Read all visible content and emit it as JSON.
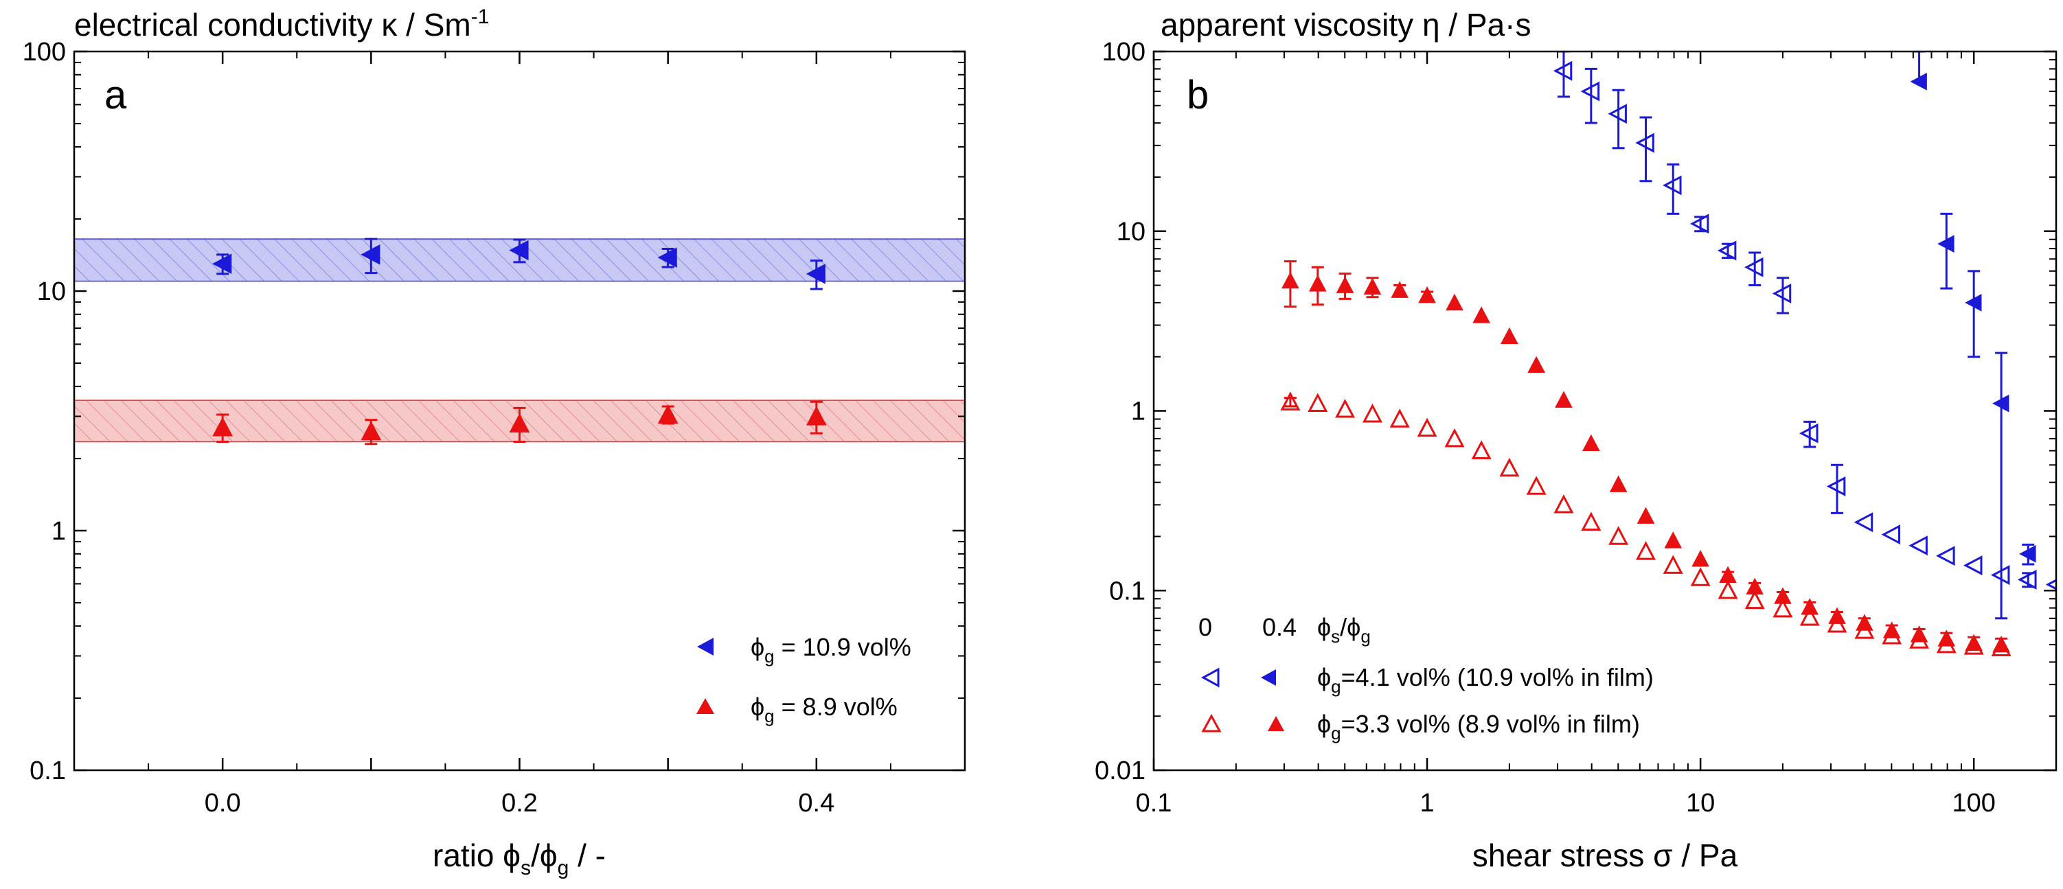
{
  "chart_data": [
    {
      "type": "scatter",
      "panel_label": "a",
      "ylabel_main": "electrical conductivity κ / Sm",
      "ylabel_sup": "-1",
      "xlabel_pre": "ratio ϕ",
      "xlabel_s": "s",
      "xlabel_slash": "/ϕ",
      "xlabel_g": "g",
      "xlabel_post": " / -",
      "xlim": [
        -0.1,
        0.5
      ],
      "ylim": [
        0.1,
        100
      ],
      "yscale": "log",
      "xticks": [
        {
          "value": 0.0,
          "label": "0.0"
        },
        {
          "value": 0.1,
          "label": ""
        },
        {
          "value": 0.2,
          "label": "0.2"
        },
        {
          "value": 0.3,
          "label": ""
        },
        {
          "value": 0.4,
          "label": "0.4"
        }
      ],
      "yticks": [
        {
          "value": 0.1,
          "label": "0.1"
        },
        {
          "value": 1,
          "label": "1"
        },
        {
          "value": 10,
          "label": "10"
        },
        {
          "value": 100,
          "label": "100"
        }
      ],
      "bands": [
        {
          "color": "#3b3bd8",
          "fill": "#c8c8f5",
          "y": [
            11,
            16.5
          ]
        },
        {
          "color": "#e03030",
          "fill": "#f7c8c8",
          "y": [
            2.35,
            3.5
          ]
        }
      ],
      "legend_position": "bottom-right",
      "series": [
        {
          "legend_pre": "ϕ",
          "legend_sub": "g",
          "legend_post": " = 10.9 vol%",
          "color": "#1a1ad8",
          "marker": "triangle-left",
          "filled": true,
          "x": [
            0.0,
            0.1,
            0.2,
            0.3,
            0.4
          ],
          "y": [
            13.0,
            14.2,
            14.8,
            13.8,
            11.8
          ],
          "err": [
            1.2,
            2.3,
            1.6,
            1.2,
            1.6
          ]
        },
        {
          "legend_pre": "ϕ",
          "legend_sub": "g",
          "legend_post": " = 8.9 vol%",
          "color": "#e81010",
          "marker": "triangle-up",
          "filled": true,
          "x": [
            0.0,
            0.1,
            0.2,
            0.3,
            0.4
          ],
          "y": [
            2.7,
            2.6,
            2.8,
            3.05,
            3.0
          ],
          "err": [
            0.35,
            0.3,
            0.45,
            0.25,
            0.45
          ]
        }
      ]
    },
    {
      "type": "scatter",
      "panel_label": "b",
      "ylabel_main": "apparent viscosity η / Pa·s",
      "xlabel": "shear stress σ / Pa",
      "xscale": "log",
      "yscale": "log",
      "xlim": [
        0.1,
        200
      ],
      "ylim": [
        0.01,
        100
      ],
      "xticks": [
        {
          "value": 0.1,
          "label": "0.1"
        },
        {
          "value": 1,
          "label": "1"
        },
        {
          "value": 10,
          "label": "10"
        },
        {
          "value": 100,
          "label": "100"
        }
      ],
      "yticks": [
        {
          "value": 0.01,
          "label": "0.01"
        },
        {
          "value": 0.1,
          "label": "0.1"
        },
        {
          "value": 1,
          "label": "1"
        },
        {
          "value": 10,
          "label": "10"
        },
        {
          "value": 100,
          "label": "100"
        }
      ],
      "legend_position": "bottom-left",
      "legend_header": {
        "open": "0",
        "filled": "0.4",
        "ratio_pre": "ϕ",
        "ratio_s": "s",
        "ratio_slash": "/ϕ",
        "ratio_g": "g"
      },
      "legend_rows": [
        {
          "pre": "ϕ",
          "sub": "g",
          "post": "=4.1 vol% (10.9 vol% in film)",
          "color": "#1a1ad8",
          "marker": "triangle-left"
        },
        {
          "pre": "ϕ",
          "sub": "g",
          "post": "=3.3 vol% (8.9 vol% in film)",
          "color": "#e81010",
          "marker": "triangle-up"
        }
      ],
      "series": [
        {
          "name": "ϕs/ϕg = 0, ϕg=4.1 vol%",
          "color": "#1a1ad8",
          "marker": "triangle-left",
          "filled": false,
          "x": [
            3.16,
            3.98,
            5.01,
            6.31,
            7.94,
            10.0,
            12.6,
            15.8,
            20.0,
            25.1,
            31.6,
            39.8,
            50.1,
            63.1,
            79.4,
            100,
            126,
            158,
            200
          ],
          "y": [
            78,
            60,
            45,
            31,
            18,
            11,
            7.8,
            6.3,
            4.5,
            0.75,
            0.38,
            0.24,
            0.205,
            0.178,
            0.156,
            0.138,
            0.122,
            0.115,
            0.108
          ],
          "err_lo": [
            22,
            20,
            16,
            12,
            5.5,
            1.0,
            0.7,
            1.3,
            1.0,
            0.12,
            0.11,
            0,
            0,
            0,
            0,
            0,
            0,
            0.01,
            0
          ],
          "err_hi": [
            22,
            20,
            16,
            12,
            5.5,
            1.0,
            0.7,
            1.3,
            1.0,
            0.12,
            0.12,
            0,
            0,
            0,
            0,
            0,
            0,
            0.01,
            0
          ]
        },
        {
          "name": "ϕs/ϕg = 0.4, ϕg=4.1 vol%",
          "color": "#1a1ad8",
          "marker": "triangle-left",
          "filled": true,
          "x": [
            63.1,
            79.4,
            100,
            126,
            158
          ],
          "y": [
            68,
            8.5,
            4.0,
            1.1,
            0.16
          ],
          "err_lo": [
            0,
            3.7,
            2.0,
            1.03,
            0.02
          ],
          "err_hi": [
            32,
            4.0,
            2.0,
            1.0,
            0.02
          ]
        },
        {
          "name": "ϕs/ϕg = 0, ϕg=3.3 vol%",
          "color": "#e81010",
          "marker": "triangle-up",
          "filled": false,
          "x": [
            0.316,
            0.398,
            0.501,
            0.631,
            0.794,
            1.0,
            1.26,
            1.58,
            2.0,
            2.51,
            3.16,
            3.98,
            5.01,
            6.31,
            7.94,
            10.0,
            12.6,
            15.8,
            20.0,
            25.1,
            31.6,
            39.8,
            50.1,
            63.1,
            79.4,
            100,
            126
          ],
          "y": [
            1.12,
            1.1,
            1.02,
            0.96,
            0.9,
            0.8,
            0.7,
            0.6,
            0.48,
            0.38,
            0.3,
            0.24,
            0.2,
            0.165,
            0.138,
            0.118,
            0.1,
            0.088,
            0.079,
            0.071,
            0.065,
            0.06,
            0.056,
            0.053,
            0.05,
            0.049,
            0.048
          ],
          "err_lo": [
            0.06,
            0,
            0,
            0,
            0,
            0,
            0,
            0,
            0,
            0,
            0,
            0,
            0,
            0,
            0,
            0,
            0,
            0,
            0,
            0,
            0,
            0,
            0,
            0,
            0,
            0,
            0
          ],
          "err_hi": [
            0.06,
            0,
            0,
            0,
            0,
            0,
            0,
            0,
            0,
            0,
            0,
            0,
            0,
            0,
            0,
            0,
            0,
            0,
            0,
            0,
            0,
            0,
            0,
            0,
            0,
            0,
            0
          ]
        },
        {
          "name": "ϕs/ϕg = 0.4, ϕg=3.3 vol%",
          "color": "#e81010",
          "marker": "triangle-up",
          "filled": true,
          "x": [
            0.316,
            0.398,
            0.501,
            0.631,
            0.794,
            1.0,
            1.26,
            1.58,
            2.0,
            2.51,
            3.16,
            3.98,
            5.01,
            6.31,
            7.94,
            10.0,
            12.6,
            15.8,
            20.0,
            25.1,
            31.6,
            39.8,
            50.1,
            63.1,
            79.4,
            100,
            126
          ],
          "y": [
            5.3,
            5.1,
            5.0,
            4.9,
            4.7,
            4.4,
            4.0,
            3.4,
            2.6,
            1.8,
            1.15,
            0.66,
            0.39,
            0.26,
            0.19,
            0.15,
            0.122,
            0.105,
            0.093,
            0.081,
            0.072,
            0.066,
            0.06,
            0.057,
            0.054,
            0.051,
            0.05
          ],
          "err_lo": [
            1.5,
            1.2,
            0.8,
            0.6,
            0.3,
            0.2,
            0,
            0,
            0,
            0,
            0,
            0,
            0,
            0,
            0,
            0,
            0.005,
            0.005,
            0.005,
            0.005,
            0.004,
            0.004,
            0.004,
            0.004,
            0.004,
            0.004,
            0.004
          ],
          "err_hi": [
            1.5,
            1.2,
            0.8,
            0.6,
            0.3,
            0.2,
            0,
            0,
            0,
            0,
            0,
            0,
            0,
            0,
            0,
            0,
            0.005,
            0.005,
            0.005,
            0.005,
            0.004,
            0.004,
            0.004,
            0.004,
            0.004,
            0.004,
            0.004
          ]
        }
      ]
    }
  ]
}
